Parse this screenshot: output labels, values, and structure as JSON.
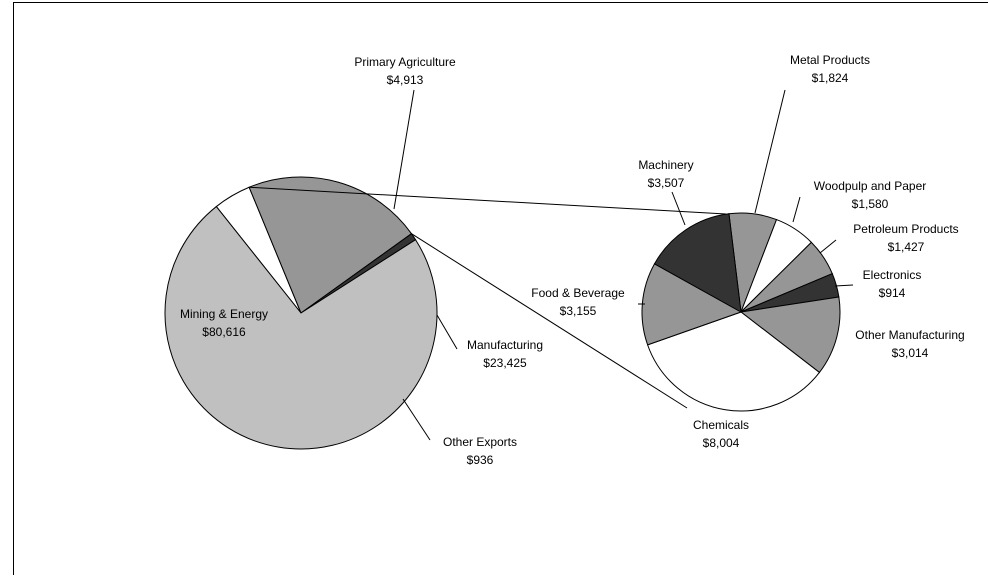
{
  "chart_data": [
    {
      "type": "pie",
      "title": "",
      "slices": [
        {
          "category": "Mining & Energy",
          "value_label": "$80,616",
          "value": 80616,
          "color": "#c0c0c0"
        },
        {
          "category": "Primary Agriculture",
          "value_label": "$4,913",
          "value": 4913,
          "color": "#ffffff"
        },
        {
          "category": "Manufacturing",
          "value_label": "$23,425",
          "value": 23425,
          "color": "#969696"
        },
        {
          "category": "Other Exports",
          "value_label": "$936",
          "value": 936,
          "color": "#333333"
        }
      ]
    },
    {
      "type": "pie",
      "title": "",
      "slices": [
        {
          "category": "Metal Products",
          "value_label": "$1,824",
          "value": 1824,
          "color": "#969696"
        },
        {
          "category": "Woodpulp and Paper",
          "value_label": "$1,580",
          "value": 1580,
          "color": "#ffffff"
        },
        {
          "category": "Petroleum Products",
          "value_label": "$1,427",
          "value": 1427,
          "color": "#969696"
        },
        {
          "category": "Electronics",
          "value_label": "$914",
          "value": 914,
          "color": "#333333"
        },
        {
          "category": "Other Manufacturing",
          "value_label": "$3,014",
          "value": 3014,
          "color": "#969696"
        },
        {
          "category": "Chemicals",
          "value_label": "$8,004",
          "value": 8004,
          "color": "#ffffff"
        },
        {
          "category": "Food & Beverage",
          "value_label": "$3,155",
          "value": 3155,
          "color": "#969696"
        },
        {
          "category": "Machinery",
          "value_label": "$3,507",
          "value": 3507,
          "color": "#333333"
        }
      ]
    }
  ]
}
